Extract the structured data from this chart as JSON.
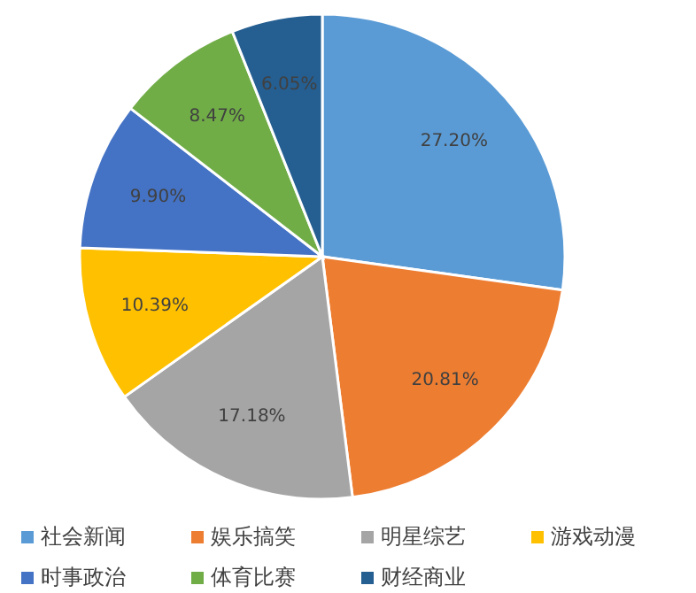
{
  "chart_data": {
    "type": "pie",
    "categories": [
      "社会新闻",
      "娱乐搞笑",
      "明星综艺",
      "游戏动漫",
      "时事政治",
      "体育比赛",
      "财经商业"
    ],
    "values": [
      27.2,
      20.81,
      17.18,
      10.39,
      9.9,
      8.47,
      6.05
    ],
    "value_labels": [
      "27.20%",
      "20.81%",
      "17.18%",
      "10.39%",
      "9.90%",
      "8.47%",
      "6.05%"
    ],
    "colors": [
      "#5b9bd5",
      "#ed7d31",
      "#a5a5a5",
      "#ffc000",
      "#4472c4",
      "#70ad47",
      "#255e91"
    ],
    "legend": "bottom"
  }
}
